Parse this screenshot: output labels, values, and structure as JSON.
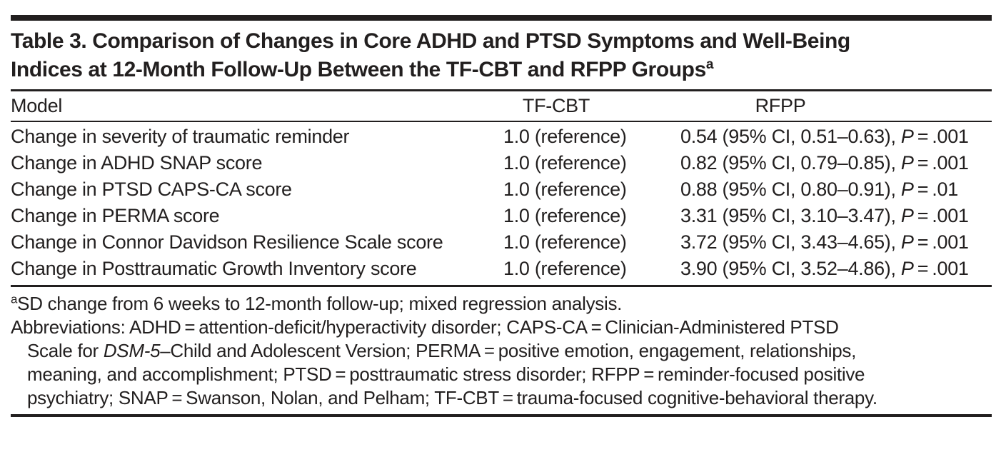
{
  "title": {
    "line1": "Table 3. Comparison of Changes in Core ADHD and PTSD Symptoms and Well-Being",
    "line2": "Indices at 12-Month Follow-Up Between the TF-CBT and RFPP Groups",
    "footnote_marker": "a"
  },
  "table": {
    "columns": {
      "model": "Model",
      "tfcbt": "TF-CBT",
      "rfpp": "RFPP"
    },
    "rows": [
      {
        "model": "Change in severity of traumatic reminder",
        "tfcbt": "1.0 (reference)",
        "rfpp": [
          {
            "t": "0.54 (95% CI, 0.51–0.63), "
          },
          {
            "t": "P",
            "i": true
          },
          {
            "t": " = .001"
          }
        ]
      },
      {
        "model": "Change in ADHD SNAP score",
        "tfcbt": "1.0 (reference)",
        "rfpp": [
          {
            "t": "0.82 (95% CI, 0.79–0.85), "
          },
          {
            "t": "P",
            "i": true
          },
          {
            "t": " = .001"
          }
        ]
      },
      {
        "model": "Change in PTSD CAPS-CA score",
        "tfcbt": "1.0 (reference)",
        "rfpp": [
          {
            "t": "0.88 (95% CI, 0.80–0.91), "
          },
          {
            "t": "P",
            "i": true
          },
          {
            "t": " = .01"
          }
        ]
      },
      {
        "model": "Change in PERMA score",
        "tfcbt": "1.0 (reference)",
        "rfpp": [
          {
            "t": "3.31 (95% CI, 3.10–3.47), "
          },
          {
            "t": "P",
            "i": true
          },
          {
            "t": " = .001"
          }
        ]
      },
      {
        "model": "Change in Connor Davidson Resilience Scale score",
        "tfcbt": "1.0 (reference)",
        "rfpp": [
          {
            "t": "3.72 (95% CI, 3.43–4.65), "
          },
          {
            "t": "P",
            "i": true
          },
          {
            "t": " = .001"
          }
        ]
      },
      {
        "model": "Change in Posttraumatic Growth Inventory score",
        "tfcbt": "1.0 (reference)",
        "rfpp": [
          {
            "t": "3.90 (95% CI, 3.52–4.86), "
          },
          {
            "t": "P",
            "i": true
          },
          {
            "t": " = .001"
          }
        ]
      }
    ]
  },
  "footnotes": {
    "lines": [
      {
        "indent": false,
        "segs": [
          {
            "t": "a",
            "sup": true
          },
          {
            "t": "SD change from 6 weeks to 12-month follow-up; mixed regression analysis."
          }
        ]
      },
      {
        "indent": false,
        "segs": [
          {
            "t": "Abbreviations: ADHD = attention-deficit/hyperactivity disorder; CAPS-CA = Clinician-Administered PTSD"
          }
        ]
      },
      {
        "indent": true,
        "segs": [
          {
            "t": "Scale for "
          },
          {
            "t": "DSM-5",
            "i": true
          },
          {
            "t": "–Child and Adolescent Version; PERMA = positive emotion, engagement, relationships,"
          }
        ]
      },
      {
        "indent": true,
        "segs": [
          {
            "t": "meaning, and accomplishment; PTSD = posttraumatic stress disorder; RFPP = reminder-focused positive"
          }
        ]
      },
      {
        "indent": true,
        "segs": [
          {
            "t": "psychiatry; SNAP = Swanson, Nolan, and Pelham; TF-CBT = trauma-focused cognitive-behavioral therapy."
          }
        ]
      }
    ]
  }
}
